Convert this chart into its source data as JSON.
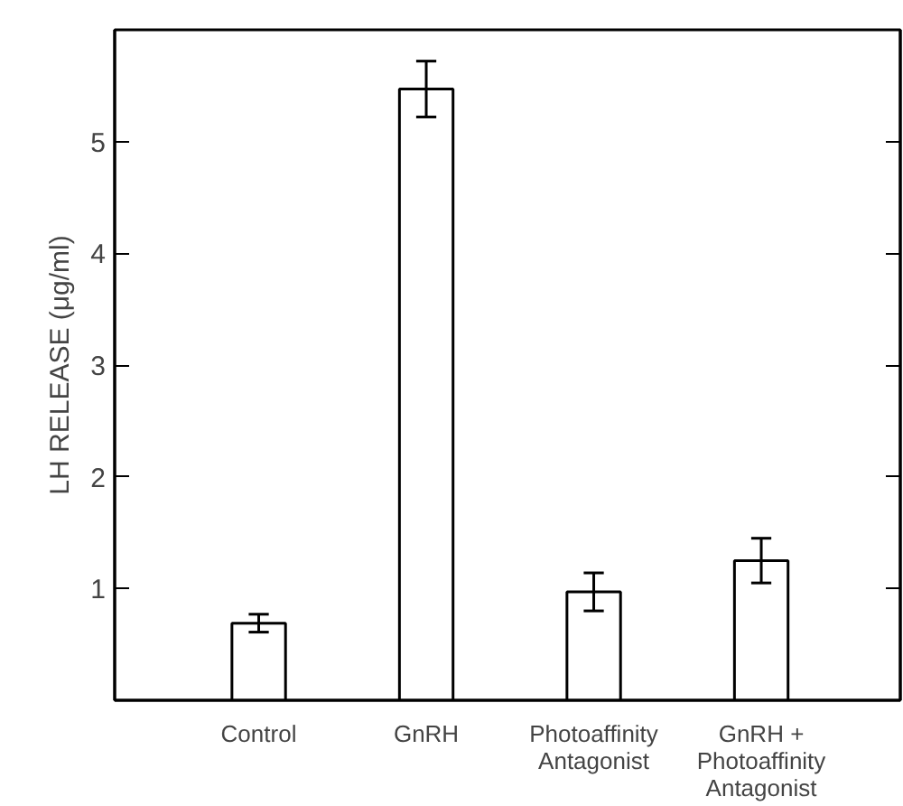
{
  "chart_data": {
    "type": "bar",
    "ylabel": "LH RELEASE (μg/ml)",
    "categories": [
      "Control",
      "GnRH",
      "Photoaffinity\nAntagonist",
      "GnRH +\nPhotoaffinity\nAntagonist"
    ],
    "values": [
      0.69,
      5.47,
      0.97,
      1.25
    ],
    "errors": [
      0.08,
      0.25,
      0.17,
      0.2
    ],
    "color": "#ffffff",
    "ylim": [
      0,
      6
    ],
    "yticks": [
      1,
      2,
      3,
      4,
      5
    ],
    "grid": false
  }
}
